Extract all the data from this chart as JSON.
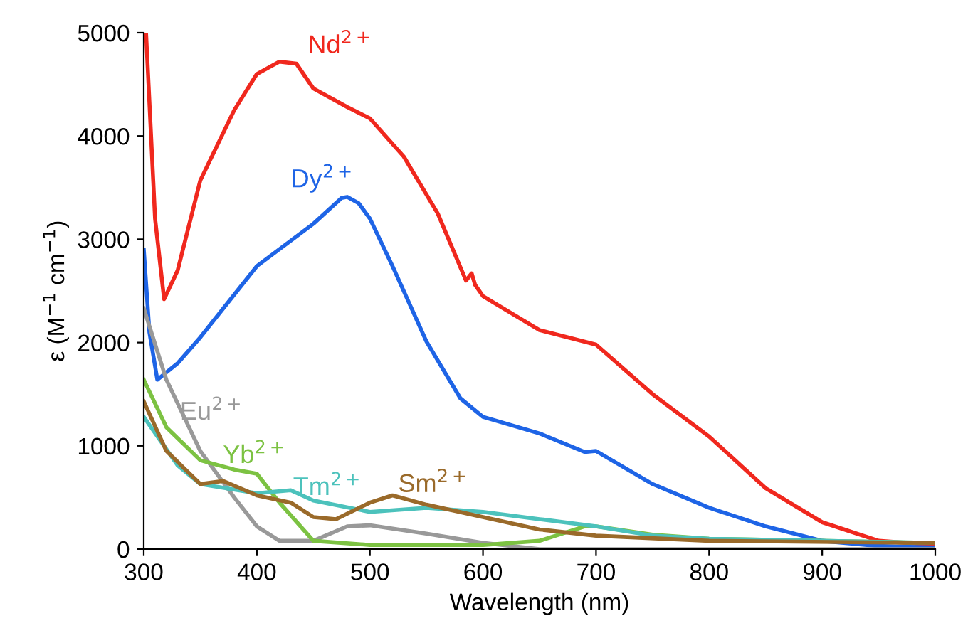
{
  "chart_data": {
    "type": "line",
    "xlabel": "Wavelength (nm)",
    "ylabel": "ε (M$^{−1}$ cm$^{−1}$)",
    "xlim": [
      300,
      1000
    ],
    "xticks": [
      300,
      400,
      500,
      600,
      700,
      800,
      900,
      1000
    ],
    "ylim": [
      0,
      5000
    ],
    "yticks": [
      0,
      1000,
      2000,
      3000,
      4000,
      5000
    ],
    "grid": false,
    "legend": false,
    "marker": "none",
    "line_style": "solid",
    "series": [
      {
        "name": "Nd$^{2+}$",
        "color": "#f0281e",
        "x": [
          302,
          310,
          318,
          330,
          350,
          380,
          400,
          420,
          435,
          450,
          480,
          500,
          530,
          560,
          585,
          590,
          593,
          600,
          650,
          700,
          750,
          800,
          850,
          900,
          950,
          1000
        ],
        "values": [
          5000,
          3200,
          2420,
          2700,
          3570,
          4250,
          4600,
          4720,
          4700,
          4460,
          4280,
          4170,
          3800,
          3250,
          2600,
          2670,
          2560,
          2450,
          2120,
          1980,
          1500,
          1090,
          590,
          260,
          80,
          40
        ]
      },
      {
        "name": "Dy$^{2+}$",
        "color": "#1e64e6",
        "x": [
          300,
          305,
          312,
          330,
          350,
          400,
          450,
          475,
          480,
          490,
          500,
          520,
          550,
          580,
          600,
          650,
          690,
          700,
          750,
          800,
          850,
          900,
          950,
          1000
        ],
        "values": [
          2900,
          2100,
          1640,
          1800,
          2050,
          2740,
          3150,
          3400,
          3410,
          3350,
          3200,
          2740,
          2010,
          1460,
          1280,
          1120,
          940,
          950,
          630,
          400,
          220,
          80,
          30,
          15
        ]
      },
      {
        "name": "Eu$^{2+}$",
        "color": "#999999",
        "x": [
          300,
          320,
          350,
          380,
          400,
          420,
          450,
          480,
          500,
          550,
          600,
          650,
          1000
        ],
        "values": [
          2330,
          1640,
          950,
          500,
          220,
          80,
          80,
          220,
          230,
          150,
          60,
          0,
          0
        ]
      },
      {
        "name": "Yb$^{2+}$",
        "color": "#7cc242",
        "x": [
          300,
          320,
          350,
          380,
          400,
          420,
          450,
          500,
          600,
          650,
          690,
          700,
          750,
          800,
          1000
        ],
        "values": [
          1640,
          1180,
          860,
          770,
          730,
          450,
          80,
          40,
          40,
          80,
          220,
          220,
          140,
          100,
          60
        ]
      },
      {
        "name": "Tm$^{2+}$",
        "color": "#4cc2bc",
        "x": [
          300,
          330,
          350,
          400,
          430,
          450,
          500,
          550,
          600,
          650,
          700,
          750,
          800,
          1000
        ],
        "values": [
          1280,
          810,
          630,
          540,
          570,
          470,
          360,
          400,
          360,
          290,
          220,
          130,
          100,
          60
        ]
      },
      {
        "name": "Sm$^{2+}$",
        "color": "#9a6a2a",
        "x": [
          300,
          320,
          350,
          370,
          400,
          430,
          450,
          470,
          500,
          520,
          550,
          600,
          650,
          700,
          800,
          1000
        ],
        "values": [
          1430,
          950,
          630,
          660,
          520,
          450,
          310,
          290,
          450,
          520,
          430,
          310,
          190,
          130,
          80,
          60
        ]
      }
    ]
  }
}
